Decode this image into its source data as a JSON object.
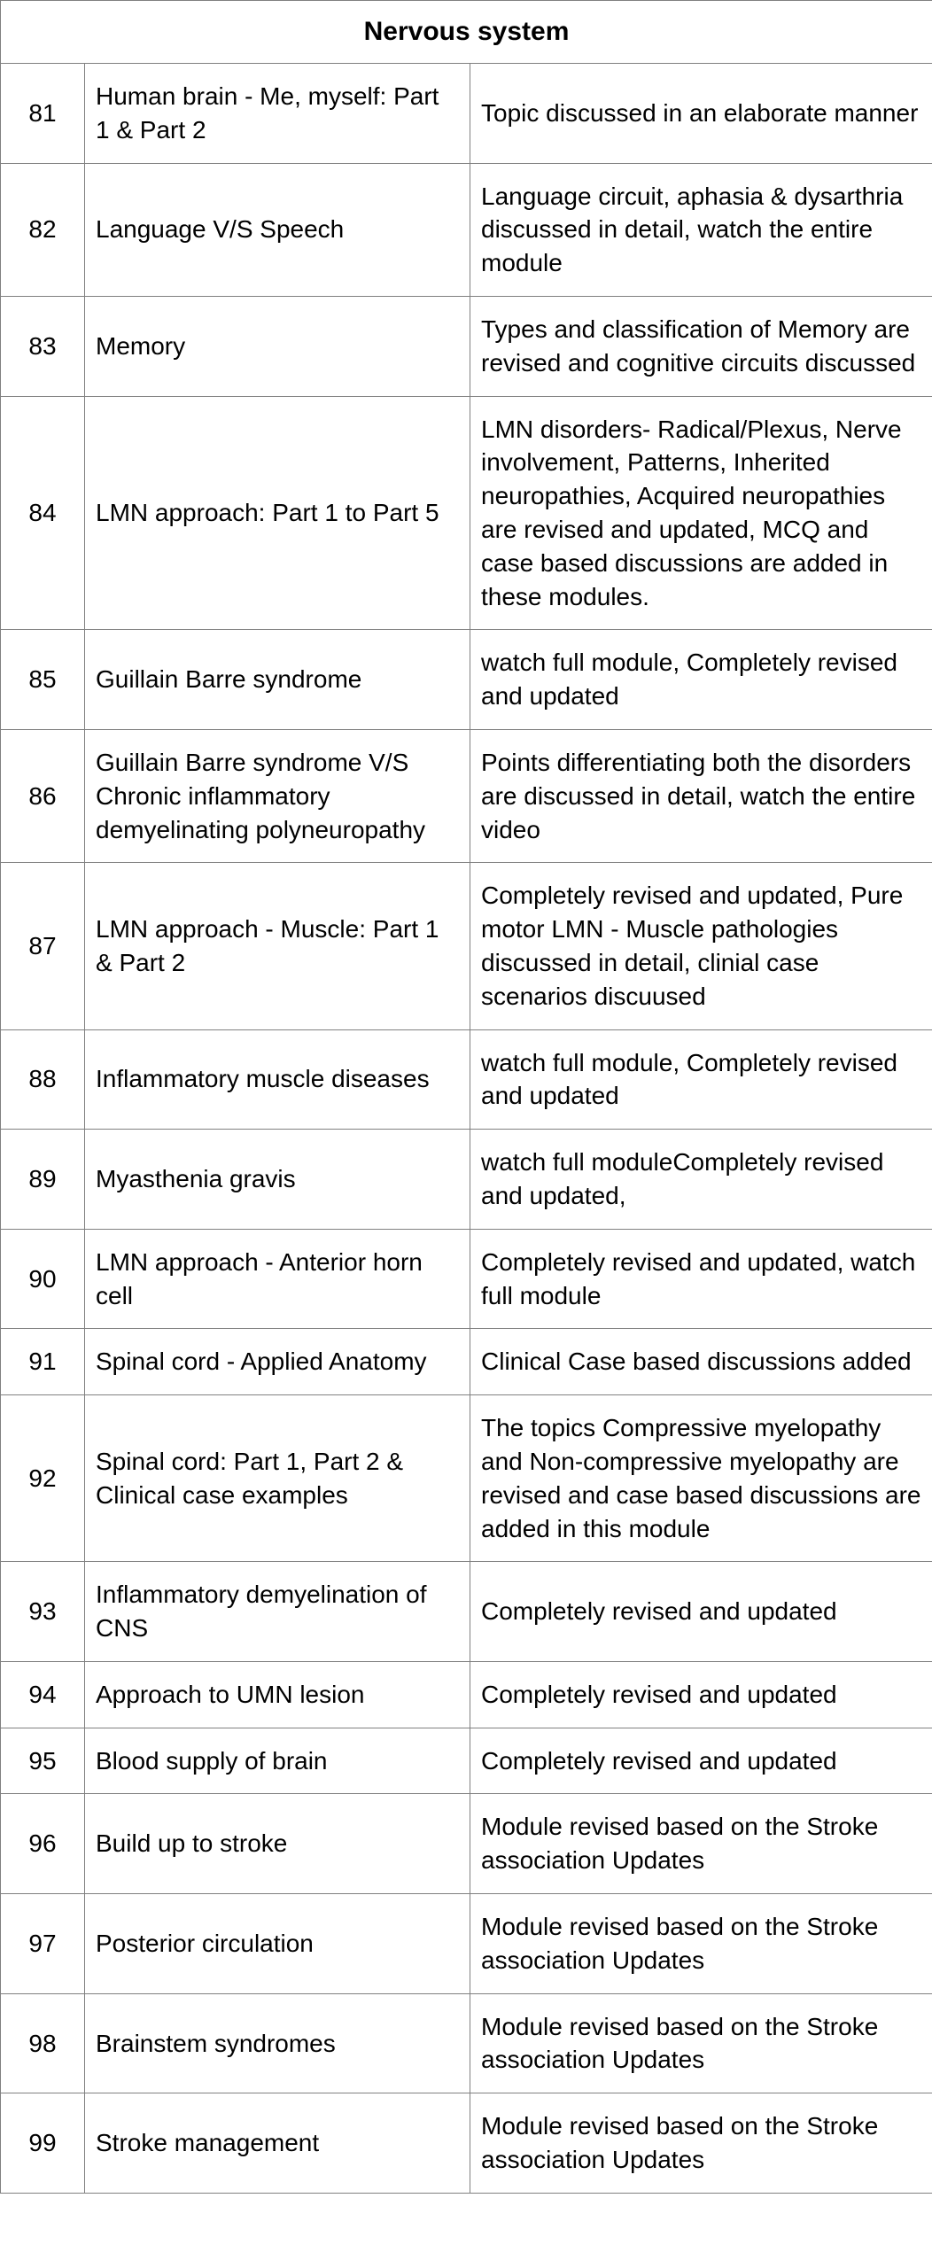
{
  "header": "Nervous system",
  "rows": [
    {
      "num": "81",
      "topic": "Human brain - Me, myself: Part 1 & Part 2",
      "desc": "Topic discussed in an elaborate manner"
    },
    {
      "num": "82",
      "topic": "Language V/S Speech",
      "desc": "Language circuit, aphasia & dysarthria discussed in detail, watch the entire module"
    },
    {
      "num": "83",
      "topic": "Memory",
      "desc": "Types and classification of Memory are revised and cognitive circuits discussed"
    },
    {
      "num": "84",
      "topic": "LMN approach: Part 1 to Part 5",
      "desc": "LMN disorders- Radical/Plexus, Nerve involvement, Patterns, Inherited neuropathies, Acquired neuropathies are revised and updated, MCQ and case based discussions are added in these modules."
    },
    {
      "num": "85",
      "topic": "Guillain Barre syndrome",
      "desc": "watch full module, Completely revised and updated"
    },
    {
      "num": "86",
      "topic": "Guillain Barre syndrome V/S Chronic inflammatory demyelinating polyneuropathy",
      "desc": "Points differentiating both the disorders are discussed in detail, watch the entire video"
    },
    {
      "num": "87",
      "topic": "LMN approach - Muscle: Part 1 & Part 2",
      "desc": "Completely revised and updated, Pure motor LMN - Muscle pathologies discussed in detail, clinial case scenarios discuused"
    },
    {
      "num": "88",
      "topic": "Inflammatory muscle diseases",
      "desc": "watch full module, Completely revised and updated"
    },
    {
      "num": "89",
      "topic": "Myasthenia gravis",
      "desc": "watch full moduleCompletely revised and updated,"
    },
    {
      "num": "90",
      "topic": "LMN approach - Anterior horn cell",
      "desc": "Completely revised and updated, watch full module"
    },
    {
      "num": "91",
      "topic": "Spinal cord - Applied Anatomy",
      "desc": "Clinical Case based discussions added"
    },
    {
      "num": "92",
      "topic": "Spinal cord: Part 1, Part 2  & Clinical case examples",
      "desc": "The topics Compressive myelopathy and Non-compressive myelopathy are revised and case based discussions are added in this module"
    },
    {
      "num": "93",
      "topic": "Inflammatory demyelination of CNS",
      "desc": "Completely revised and updated"
    },
    {
      "num": "94",
      "topic": "Approach to UMN lesion",
      "desc": "Completely revised and updated"
    },
    {
      "num": "95",
      "topic": "Blood supply of brain",
      "desc": "Completely revised and updated"
    },
    {
      "num": "96",
      "topic": "Build up to stroke",
      "desc": "Module revised based on the Stroke association Updates"
    },
    {
      "num": "97",
      "topic": "Posterior circulation",
      "desc": "Module revised based on the Stroke association Updates"
    },
    {
      "num": "98",
      "topic": "Brainstem syndromes",
      "desc": "Module revised based on the Stroke association Updates"
    },
    {
      "num": "99",
      "topic": "Stroke management",
      "desc": "Module revised based on the Stroke association Updates"
    }
  ]
}
